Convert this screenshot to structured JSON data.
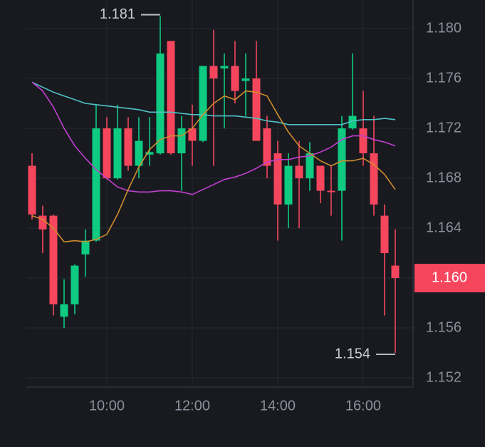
{
  "chart_data": {
    "type": "candlestick",
    "x": [
      8.25,
      8.5,
      8.75,
      9,
      9.25,
      9.5,
      9.75,
      10,
      10.25,
      10.5,
      10.75,
      11,
      11.25,
      11.5,
      11.75,
      12,
      12.25,
      12.5,
      12.75,
      13,
      13.25,
      13.5,
      13.75,
      14,
      14.25,
      14.5,
      14.75,
      15,
      15.25,
      15.5,
      15.75,
      16,
      16.25,
      16.5,
      16.75
    ],
    "open": [
      1.169,
      1.165,
      1.165,
      1.1569,
      1.1579,
      1.1619,
      1.163,
      1.172,
      1.168,
      1.172,
      1.169,
      1.1699,
      1.17,
      1.179,
      1.17,
      1.172,
      1.171,
      1.177,
      1.1768,
      1.177,
      1.1758,
      1.176,
      1.172,
      1.17,
      1.1659,
      1.169,
      1.168,
      1.169,
      1.167,
      1.167,
      1.172,
      1.172,
      1.17,
      1.165,
      1.161
    ],
    "high": [
      1.17,
      1.1658,
      1.1651,
      1.1599,
      1.1611,
      1.1639,
      1.1739,
      1.1729,
      1.1739,
      1.1729,
      1.1729,
      1.1729,
      1.181,
      1.179,
      1.173,
      1.1739,
      1.177,
      1.1799,
      1.178,
      1.179,
      1.178,
      1.179,
      1.173,
      1.171,
      1.17,
      1.171,
      1.1709,
      1.169,
      1.169,
      1.173,
      1.178,
      1.175,
      1.173,
      1.1659,
      1.1639
    ],
    "low": [
      1.1647,
      1.162,
      1.157,
      1.156,
      1.1571,
      1.1601,
      1.1629,
      1.1679,
      1.1679,
      1.1686,
      1.168,
      1.169,
      1.1699,
      1.1699,
      1.167,
      1.169,
      1.1709,
      1.169,
      1.172,
      1.174,
      1.173,
      1.171,
      1.168,
      1.163,
      1.164,
      1.164,
      1.167,
      1.166,
      1.165,
      1.163,
      1.1719,
      1.169,
      1.165,
      1.157,
      1.154
    ],
    "close": [
      1.1651,
      1.1639,
      1.1579,
      1.1579,
      1.161,
      1.163,
      1.172,
      1.168,
      1.172,
      1.169,
      1.171,
      1.1701,
      1.178,
      1.17,
      1.172,
      1.171,
      1.177,
      1.176,
      1.177,
      1.175,
      1.176,
      1.171,
      1.169,
      1.1659,
      1.169,
      1.168,
      1.17,
      1.167,
      1.1669,
      1.172,
      1.173,
      1.17,
      1.1659,
      1.162,
      1.16
    ],
    "up_color": "#0ecb81",
    "down_color": "#f6465d",
    "lines": [
      {
        "color": "#4fc1c4",
        "values": [
          1.1757,
          1.1753,
          1.1749,
          1.1746,
          1.1743,
          1.174,
          1.1739,
          1.1738,
          1.1737,
          1.1736,
          1.1735,
          1.1733,
          1.1733,
          1.1733,
          1.1732,
          1.1731,
          1.1731,
          1.173,
          1.173,
          1.173,
          1.1729,
          1.1728,
          1.1726,
          1.1725,
          1.1723,
          1.1723,
          1.1723,
          1.1723,
          1.1723,
          1.1723,
          1.1726,
          1.1727,
          1.1727,
          1.1728,
          1.1727
        ]
      },
      {
        "color": "#c13fcf",
        "values": [
          1.1757,
          1.175,
          1.1737,
          1.172,
          1.1706,
          1.1696,
          1.1687,
          1.168,
          1.1673,
          1.167,
          1.1669,
          1.1669,
          1.167,
          1.167,
          1.1669,
          1.1667,
          1.1671,
          1.1675,
          1.1679,
          1.1681,
          1.1684,
          1.1688,
          1.1693,
          1.1695,
          1.1695,
          1.1697,
          1.1698,
          1.1701,
          1.1705,
          1.1711,
          1.1714,
          1.1714,
          1.1711,
          1.1709,
          1.1706
        ]
      },
      {
        "color": "#d08c2e",
        "values": [
          1.165,
          1.1647,
          1.164,
          1.1629,
          1.163,
          1.1629,
          1.1631,
          1.1635,
          1.1651,
          1.1671,
          1.1689,
          1.1703,
          1.1711,
          1.1714,
          1.1714,
          1.172,
          1.1731,
          1.174,
          1.1746,
          1.1743,
          1.175,
          1.1749,
          1.1746,
          1.1731,
          1.1717,
          1.1706,
          1.17,
          1.1694,
          1.169,
          1.1694,
          1.1694,
          1.1696,
          1.1691,
          1.1683,
          1.1671
        ]
      }
    ],
    "xlim": [
      8.117,
      17.167
    ],
    "xticks": [
      {
        "value": 10,
        "label": "10:00"
      },
      {
        "value": 12,
        "label": "12:00"
      },
      {
        "value": 14,
        "label": "14:00"
      },
      {
        "value": 16,
        "label": "16:00"
      }
    ],
    "ylim": [
      1.15126,
      1.18229
    ],
    "yticks": [
      {
        "value": 1.152,
        "label": "1.152"
      },
      1.156,
      {
        "value": 1.16,
        "label": "1.160"
      },
      1.164,
      1.168,
      1.172,
      1.176,
      {
        "value": 1.18,
        "label": "1.180"
      }
    ],
    "grid": true,
    "high_label": 1.181,
    "low_label": 1.154,
    "last_price": {
      "value": 1.16,
      "label": "1.160"
    },
    "last_price_color": "#f6465d"
  }
}
